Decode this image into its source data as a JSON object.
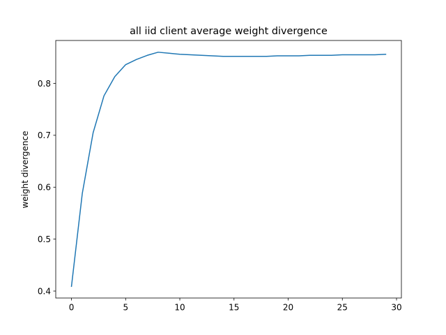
{
  "chart_data": {
    "type": "line",
    "title": "all iid client average weight divergence",
    "xlabel": "",
    "ylabel": "weight divergence",
    "xlim": [
      -1.45,
      30.45
    ],
    "ylim": [
      0.3866,
      0.8826
    ],
    "x_ticks": [
      0,
      5,
      10,
      15,
      20,
      25,
      30
    ],
    "y_ticks": [
      0.4,
      0.5,
      0.6,
      0.7,
      0.8
    ],
    "x_tick_labels": [
      "0",
      "5",
      "10",
      "15",
      "20",
      "25",
      "30"
    ],
    "y_tick_labels": [
      "0.4",
      "0.5",
      "0.6",
      "0.7",
      "0.8"
    ],
    "grid": false,
    "legend": "none",
    "series": [
      {
        "color": "#1f77b4",
        "x": [
          0,
          1,
          2,
          3,
          4,
          5,
          6,
          7,
          8,
          9,
          10,
          11,
          12,
          13,
          14,
          15,
          16,
          17,
          18,
          19,
          20,
          21,
          22,
          23,
          24,
          25,
          26,
          27,
          28,
          29
        ],
        "values": [
          0.409,
          0.588,
          0.705,
          0.776,
          0.813,
          0.836,
          0.846,
          0.854,
          0.86,
          0.858,
          0.856,
          0.855,
          0.854,
          0.853,
          0.852,
          0.852,
          0.852,
          0.852,
          0.852,
          0.853,
          0.853,
          0.853,
          0.854,
          0.854,
          0.854,
          0.855,
          0.855,
          0.855,
          0.855,
          0.856
        ]
      }
    ]
  }
}
